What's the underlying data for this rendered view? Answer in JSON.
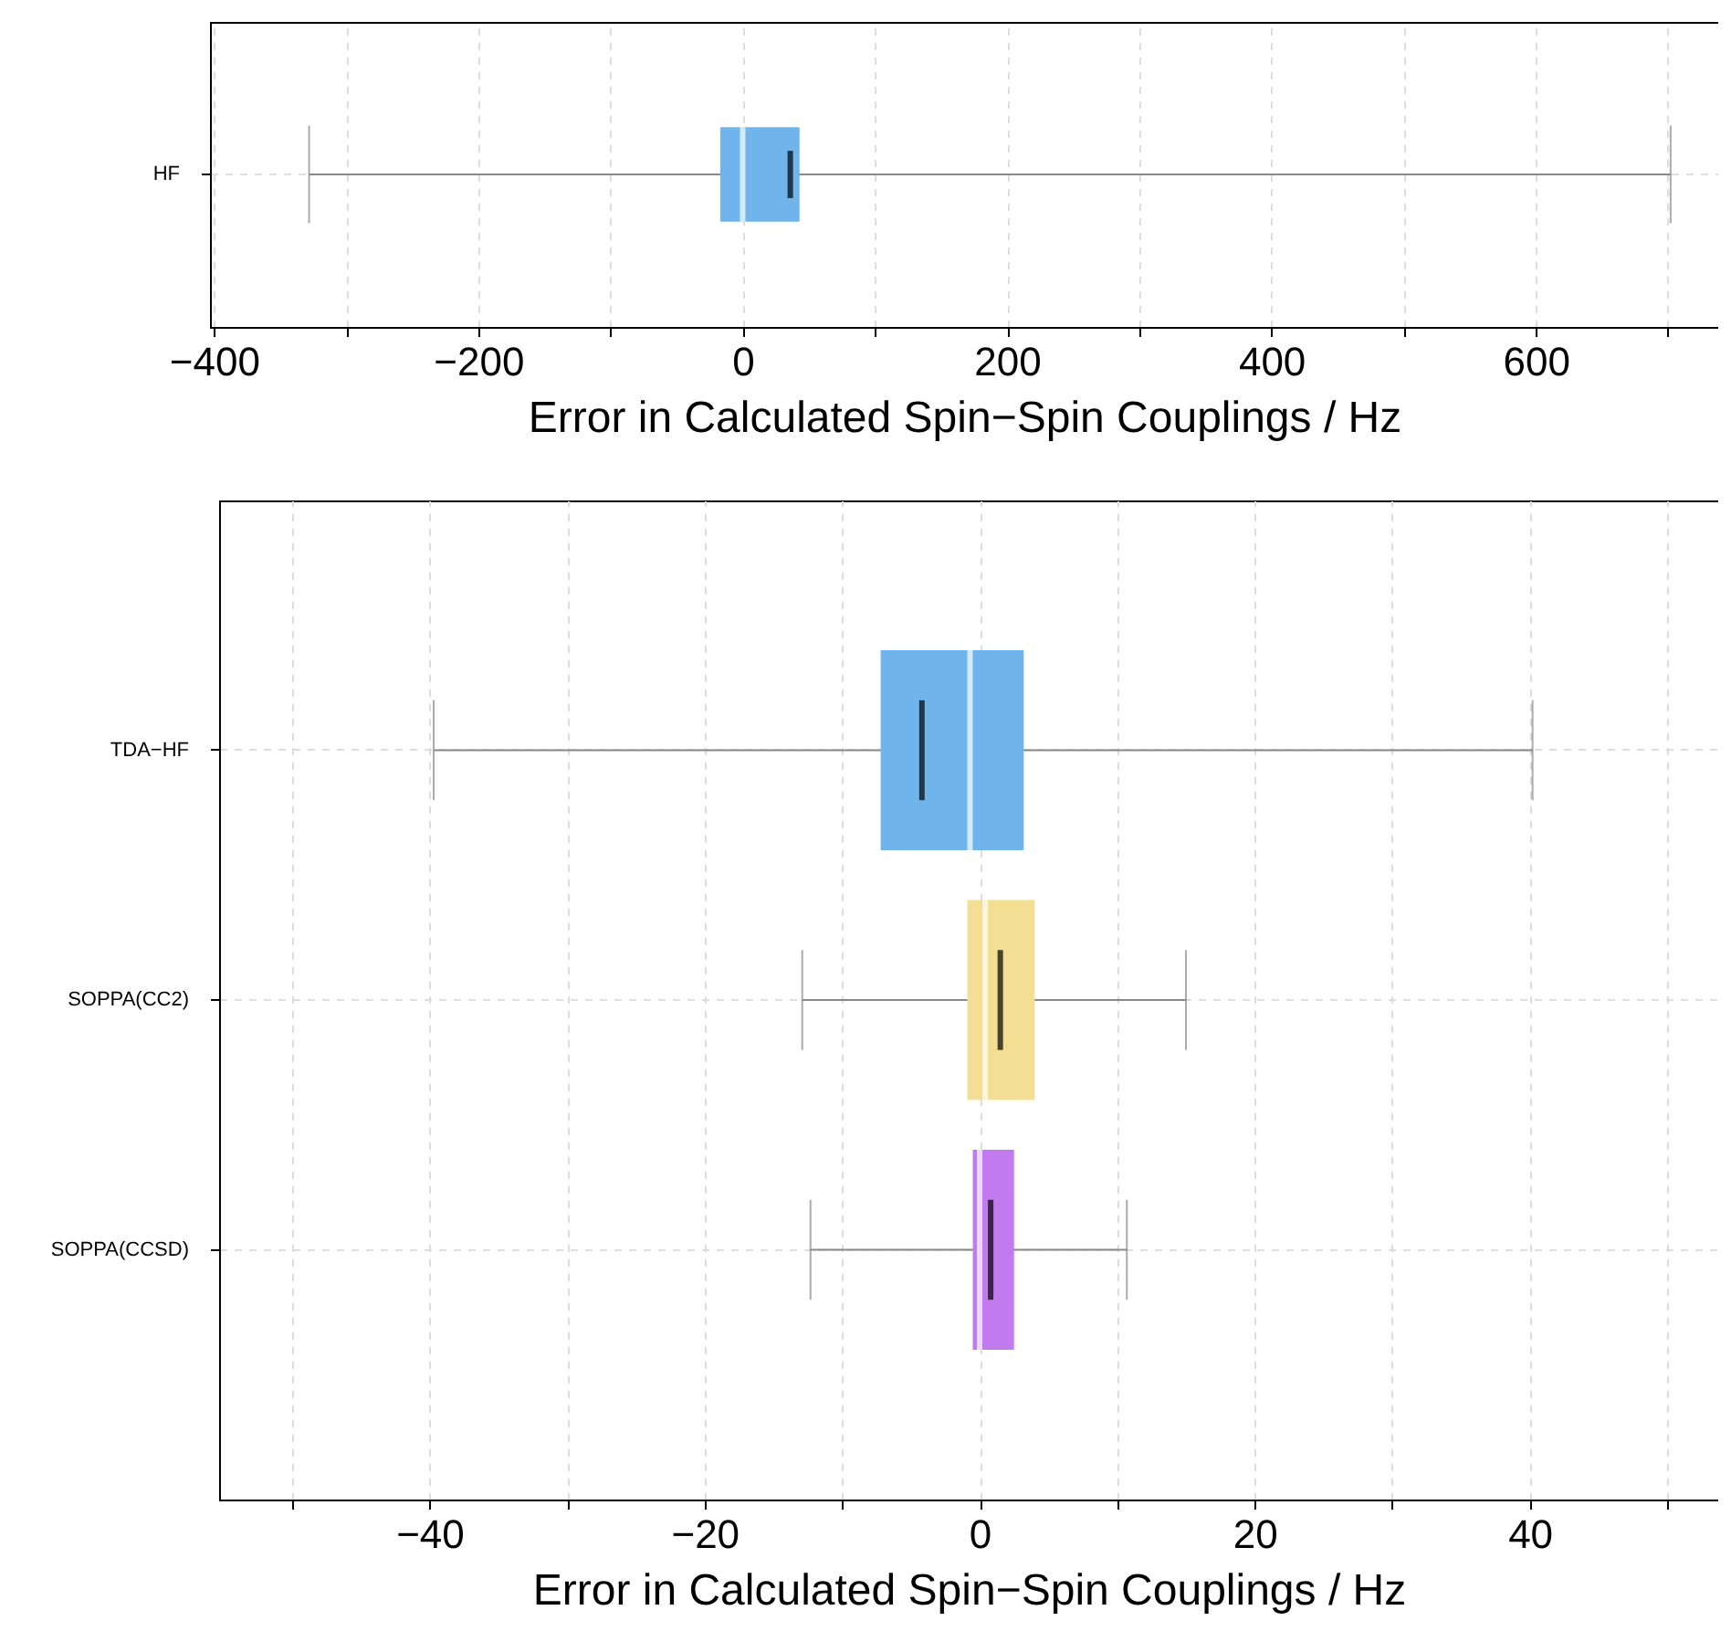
{
  "chart_data": [
    {
      "type": "box",
      "orientation": "horizontal",
      "categories": [
        "HF"
      ],
      "colors": [
        "#6fb4ea"
      ],
      "boxes": [
        {
          "low": -328,
          "q1": -17,
          "median": 0,
          "q3": 43,
          "high": 702,
          "mean": 36
        }
      ],
      "xlim": [
        -403,
        738
      ],
      "xticks": [
        {
          "value": -400,
          "label": "−400"
        },
        {
          "value": -300,
          "label": null
        },
        {
          "value": -200,
          "label": "−200"
        },
        {
          "value": -100,
          "label": null
        },
        0,
        {
          "value": 100,
          "label": null
        },
        200,
        {
          "value": 300,
          "label": null
        },
        400,
        {
          "value": 500,
          "label": null
        },
        600,
        {
          "value": 700,
          "label": null
        }
      ],
      "xlabel": "Error in Calculated Spin−Spin Couplings / Hz",
      "grid": true
    },
    {
      "type": "box",
      "orientation": "horizontal",
      "categories": [
        "TDA−HF",
        "SOPPA(CC2)",
        "SOPPA(CCSD)"
      ],
      "colors": [
        "#6fb4ea",
        "#f3df94",
        "#c17bef"
      ],
      "boxes": [
        {
          "low": -39.7,
          "q1": -7.2,
          "median": -0.7,
          "q3": 3.2,
          "high": 40.2,
          "mean": -4.2
        },
        {
          "low": -12.9,
          "q1": -0.9,
          "median": 0.4,
          "q3": 4.0,
          "high": 15.0,
          "mean": 1.5
        },
        {
          "low": -12.3,
          "q1": -0.5,
          "median": 0.0,
          "q3": 2.5,
          "high": 10.7,
          "mean": 0.8
        }
      ],
      "xlim": [
        -55.3,
        53.7
      ],
      "xticks": [
        {
          "value": -50,
          "label": null
        },
        {
          "value": -40,
          "label": "−40"
        },
        {
          "value": -30,
          "label": null
        },
        {
          "value": -20,
          "label": "−20"
        },
        {
          "value": -10,
          "label": null
        },
        0,
        {
          "value": 10,
          "label": null
        },
        20,
        {
          "value": 30,
          "label": null
        },
        40,
        {
          "value": 50,
          "label": null
        }
      ],
      "xlabel": "Error in Calculated Spin−Spin Couplings / Hz",
      "grid": true
    }
  ]
}
